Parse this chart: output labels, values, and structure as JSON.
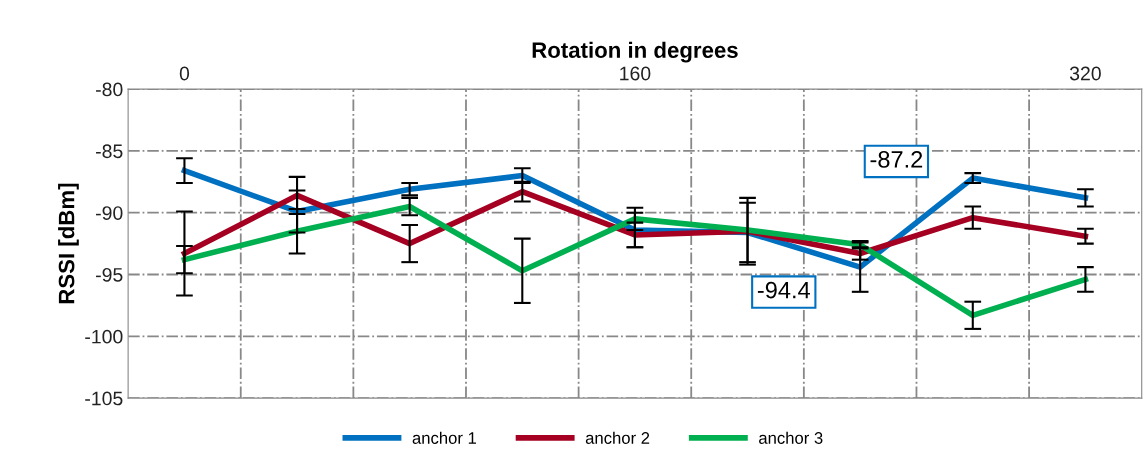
{
  "chart_data": {
    "type": "line",
    "xlabel": "Rotation in degrees",
    "ylabel": "RSSI [dBm]",
    "x": [
      0,
      40,
      80,
      120,
      160,
      200,
      240,
      280,
      320
    ],
    "series": [
      {
        "name": "anchor 1",
        "color": "#0070c0",
        "values": [
          -86.6,
          -89.9,
          -88.1,
          -87.0,
          -91.4,
          -91.6,
          -94.4,
          -87.2,
          -88.8
        ],
        "errors": [
          1.0,
          1.7,
          0.5,
          0.6,
          1.4,
          2.4,
          2.0,
          0.4,
          0.7
        ]
      },
      {
        "name": "anchor 2",
        "color": "#a50021",
        "values": [
          -93.3,
          -88.6,
          -92.5,
          -88.3,
          -91.8,
          -91.5,
          -93.3,
          -90.4,
          -91.9
        ],
        "errors": [
          3.4,
          1.5,
          1.5,
          0.8,
          1.0,
          2.7,
          0.5,
          0.9,
          0.6
        ]
      },
      {
        "name": "anchor 3",
        "color": "#00b050",
        "values": [
          -93.8,
          -91.5,
          -89.5,
          -94.7,
          -90.5,
          -91.4,
          -92.6,
          -98.3,
          -95.4
        ],
        "errors": [
          1.1,
          1.8,
          0.7,
          2.6,
          0.9,
          null,
          0.3,
          1.1,
          1.0
        ]
      }
    ],
    "annotations": [
      {
        "text": "-87.2",
        "x": 280,
        "y": -87.2
      },
      {
        "text": "-94.4",
        "x": 240,
        "y": -94.4
      }
    ],
    "xlim": [
      -20,
      340
    ],
    "xticks": [
      0,
      {
        "value": 20,
        "label": null
      },
      {
        "value": 60,
        "label": null
      },
      {
        "value": 100,
        "label": null
      },
      {
        "value": 140,
        "label": null
      },
      160,
      {
        "value": 180,
        "label": null
      },
      {
        "value": 220,
        "label": null
      },
      {
        "value": 260,
        "label": null
      },
      {
        "value": 300,
        "label": null
      },
      320
    ],
    "ylim": [
      -105,
      -80
    ],
    "yticks": [
      -105,
      -100,
      -95,
      -90,
      -85,
      -80
    ],
    "grid": true,
    "legend": "bottom",
    "marker": "none",
    "line_style": "solid"
  }
}
